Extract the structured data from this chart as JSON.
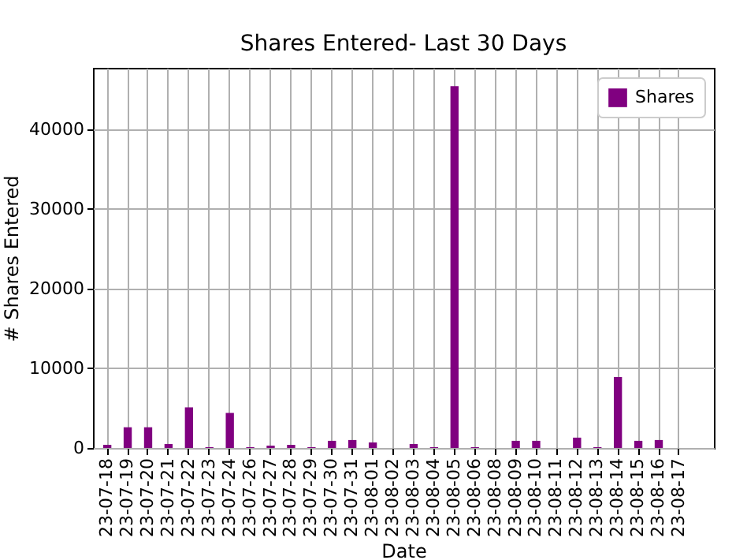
{
  "chart_data": {
    "type": "bar",
    "title": "Shares Entered- Last 30 Days",
    "xlabel": "Date",
    "ylabel": "# Shares Entered",
    "categories": [
      "23-07-18",
      "23-07-19",
      "23-07-20",
      "23-07-21",
      "23-07-22",
      "23-07-23",
      "23-07-24",
      "23-07-26",
      "23-07-27",
      "23-07-28",
      "23-07-29",
      "23-07-30",
      "23-07-31",
      "23-08-01",
      "23-08-02",
      "23-08-03",
      "23-08-04",
      "23-08-05",
      "23-08-06",
      "23-08-08",
      "23-08-09",
      "23-08-10",
      "23-08-11",
      "23-08-12",
      "23-08-13",
      "23-08-14",
      "23-08-15",
      "23-08-16",
      "23-08-17"
    ],
    "series": [
      {
        "name": "Shares",
        "color": "#800080",
        "values": [
          400,
          2600,
          2600,
          500,
          5100,
          100,
          4400,
          100,
          300,
          400,
          100,
          900,
          1000,
          700,
          0,
          500,
          100,
          45400,
          100,
          0,
          900,
          900,
          0,
          1300,
          100,
          8900,
          900,
          1000,
          0
        ]
      }
    ],
    "ylim": [
      0,
      47700
    ],
    "yticks": [
      0,
      10000,
      20000,
      30000,
      40000
    ],
    "grid": true,
    "legend": "top right"
  }
}
